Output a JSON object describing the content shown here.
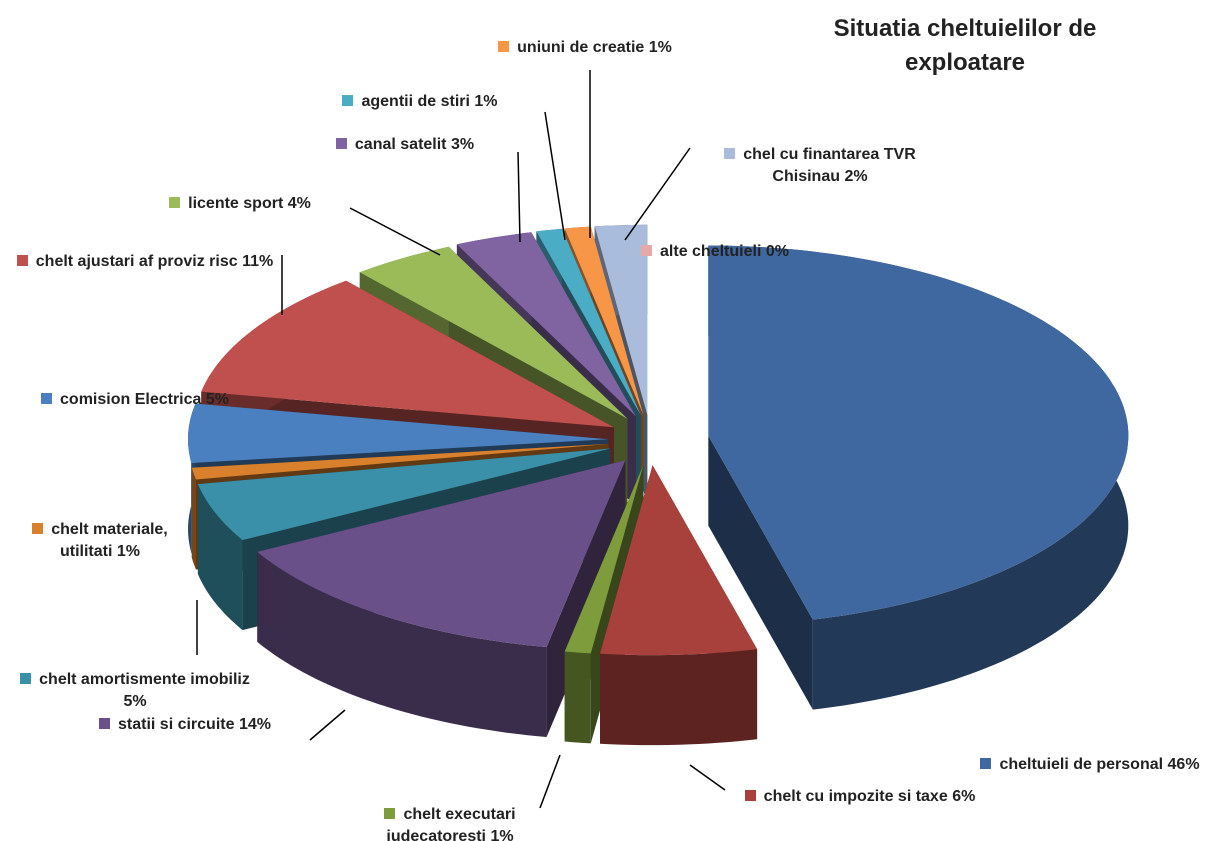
{
  "chart_data": {
    "type": "pie",
    "title": "Situatia cheltuielilor de exploatare",
    "categories": [
      "cheltuieli de personal",
      "chelt cu impozite si taxe",
      "chelt executari judecatoresti",
      "statii si circuite",
      "chelt amortismente imobiliz",
      "chelt materiale, utilitati",
      "comision Electrica",
      "chelt ajustari af proviz risc",
      "licente sport",
      "canal satelit",
      "agentii de stiri",
      "uniuni de creatie",
      "chel cu finantarea TVR Chisinau",
      "alte cheltuieli"
    ],
    "values": [
      46,
      6,
      1,
      14,
      5,
      1,
      5,
      11,
      4,
      3,
      1,
      1,
      2,
      0
    ],
    "value_labels": [
      "46%",
      "6%",
      "1%",
      "14%",
      "5%",
      "1%",
      "5%",
      "11%",
      "4%",
      "3%",
      "1%",
      "1%",
      "2%",
      "0%"
    ],
    "colors": [
      "#4068a0",
      "#a8403c",
      "#7e9c3c",
      "#6a5088",
      "#3a90a8",
      "#d8802c",
      "#4a80c0",
      "#c0504d",
      "#9bbb59",
      "#8064a2",
      "#4bacc6",
      "#f79646",
      "#a9bcdc",
      "#e8a8a8"
    ]
  }
}
